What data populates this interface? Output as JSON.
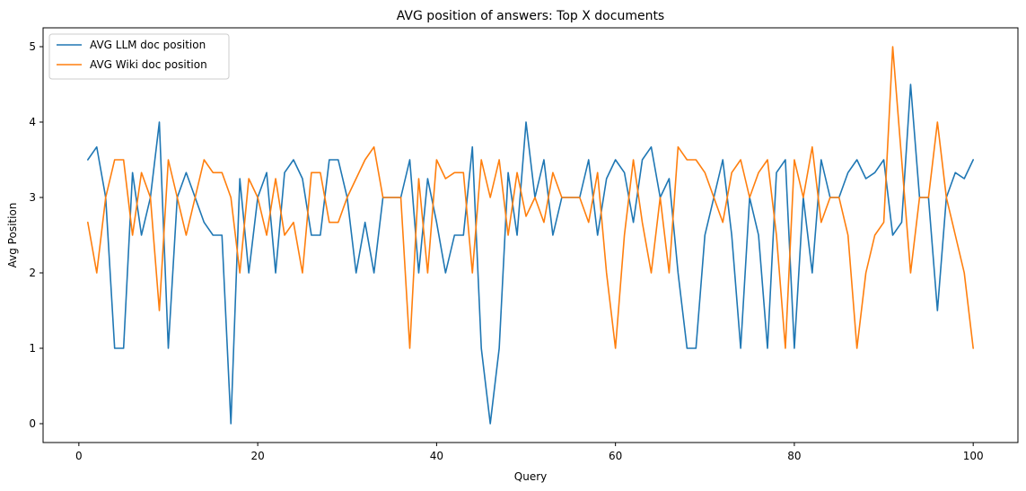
{
  "chart_data": {
    "type": "line",
    "title": "AVG position of answers: Top X documents",
    "xlabel": "Query",
    "ylabel": "Avg Position",
    "xlim": [
      -4,
      105
    ],
    "ylim": [
      -0.25,
      5.25
    ],
    "xticks": [
      0,
      20,
      40,
      60,
      80,
      100
    ],
    "yticks": [
      0,
      1,
      2,
      3,
      4,
      5
    ],
    "grid": false,
    "legend_position": "top-left",
    "x": [
      1,
      2,
      3,
      4,
      5,
      6,
      7,
      8,
      9,
      10,
      11,
      12,
      13,
      14,
      15,
      16,
      17,
      18,
      19,
      20,
      21,
      22,
      23,
      24,
      25,
      26,
      27,
      28,
      29,
      30,
      31,
      32,
      33,
      34,
      35,
      36,
      37,
      38,
      39,
      40,
      41,
      42,
      43,
      44,
      45,
      46,
      47,
      48,
      49,
      50,
      51,
      52,
      53,
      54,
      55,
      56,
      57,
      58,
      59,
      60,
      61,
      62,
      63,
      64,
      65,
      66,
      67,
      68,
      69,
      70,
      71,
      72,
      73,
      74,
      75,
      76,
      77,
      78,
      79,
      80,
      81,
      82,
      83,
      84,
      85,
      86,
      87,
      88,
      89,
      90,
      91,
      92,
      93,
      94,
      95,
      96,
      97,
      98,
      99,
      100
    ],
    "series": [
      {
        "name": "AVG LLM doc position",
        "color": "#1f77b4",
        "values": [
          3.5,
          3.67,
          3.0,
          1.0,
          1.0,
          3.33,
          2.5,
          3.0,
          4.0,
          1.0,
          3.0,
          3.33,
          3.0,
          2.67,
          2.5,
          2.5,
          0.0,
          3.25,
          2.0,
          3.0,
          3.33,
          2.0,
          3.33,
          3.5,
          3.25,
          2.5,
          2.5,
          3.5,
          3.5,
          3.0,
          2.0,
          2.67,
          2.0,
          3.0,
          3.0,
          3.0,
          3.5,
          2.0,
          3.25,
          2.67,
          2.0,
          2.5,
          2.5,
          3.67,
          1.0,
          0.0,
          1.0,
          3.33,
          2.5,
          4.0,
          3.0,
          3.5,
          2.5,
          3.0,
          3.0,
          3.0,
          3.5,
          2.5,
          3.25,
          3.5,
          3.33,
          2.67,
          3.5,
          3.67,
          3.0,
          3.25,
          2.0,
          1.0,
          1.0,
          2.5,
          3.0,
          3.5,
          2.5,
          1.0,
          3.0,
          2.5,
          1.0,
          3.33,
          3.5,
          1.0,
          3.0,
          2.0,
          3.5,
          3.0,
          3.0,
          3.33,
          3.5,
          3.25,
          3.33,
          3.5,
          2.5,
          2.67,
          4.5,
          3.0,
          3.0,
          1.5,
          3.0,
          3.33,
          3.25,
          3.5
        ]
      },
      {
        "name": "AVG Wiki doc position",
        "color": "#ff7f0e",
        "values": [
          2.67,
          2.0,
          3.0,
          3.5,
          3.5,
          2.5,
          3.33,
          3.0,
          1.5,
          3.5,
          3.0,
          2.5,
          3.0,
          3.5,
          3.33,
          3.33,
          3.0,
          2.0,
          3.25,
          3.0,
          2.5,
          3.25,
          2.5,
          2.67,
          2.0,
          3.33,
          3.33,
          2.67,
          2.67,
          3.0,
          3.25,
          3.5,
          3.67,
          3.0,
          3.0,
          3.0,
          1.0,
          3.25,
          2.0,
          3.5,
          3.25,
          3.33,
          3.33,
          2.0,
          3.5,
          3.0,
          3.5,
          2.5,
          3.33,
          2.75,
          3.0,
          2.67,
          3.33,
          3.0,
          3.0,
          3.0,
          2.67,
          3.33,
          2.0,
          1.0,
          2.5,
          3.5,
          2.67,
          2.0,
          3.0,
          2.0,
          3.67,
          3.5,
          3.5,
          3.33,
          3.0,
          2.67,
          3.33,
          3.5,
          3.0,
          3.33,
          3.5,
          2.5,
          1.0,
          3.5,
          3.0,
          3.67,
          2.67,
          3.0,
          3.0,
          2.5,
          1.0,
          2.0,
          2.5,
          2.67,
          5.0,
          3.5,
          2.0,
          3.0,
          3.0,
          4.0,
          3.0,
          2.5,
          2.0,
          1.0
        ]
      }
    ]
  }
}
